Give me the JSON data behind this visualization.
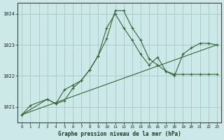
{
  "title": "Graphe pression niveau de la mer (hPa)",
  "bg_color": "#cce8e8",
  "grid_color": "#aacccc",
  "line_color": "#336633",
  "xlim": [
    -0.5,
    23.5
  ],
  "ylim": [
    1020.5,
    1024.35
  ],
  "yticks": [
    1021,
    1022,
    1023,
    1024
  ],
  "xticks": [
    0,
    1,
    2,
    3,
    4,
    5,
    6,
    7,
    8,
    9,
    10,
    11,
    12,
    13,
    14,
    15,
    16,
    17,
    18,
    19,
    20,
    21,
    22,
    23
  ],
  "line1_x": [
    0,
    1,
    3,
    4,
    5,
    6,
    7,
    8,
    9,
    10,
    11,
    12,
    13,
    14,
    15,
    16,
    17,
    18,
    19,
    20,
    21,
    22,
    23
  ],
  "line1_y": [
    1020.75,
    1021.05,
    1021.25,
    1021.1,
    1021.55,
    1021.7,
    1021.85,
    1022.2,
    1022.65,
    1023.2,
    1024.1,
    1024.1,
    1023.55,
    1023.15,
    1022.55,
    1022.35,
    1022.15,
    1022.05,
    1022.05,
    1022.05,
    1022.05,
    1022.05,
    1022.05
  ],
  "line2_x": [
    0,
    3,
    4,
    5,
    6,
    7,
    8,
    9,
    10,
    11,
    12,
    13,
    14,
    15,
    16,
    17,
    18,
    19,
    20,
    21,
    22,
    23
  ],
  "line2_y": [
    1020.75,
    1021.25,
    1021.1,
    1021.2,
    1021.6,
    1021.85,
    1022.2,
    1022.65,
    1023.55,
    1024.0,
    1023.55,
    1023.15,
    1022.7,
    1022.35,
    1022.6,
    1022.15,
    1022.0,
    1022.7,
    1022.9,
    1023.05,
    1023.05,
    1023.0
  ],
  "line3_x": [
    0,
    23
  ],
  "line3_y": [
    1020.75,
    1023.0
  ]
}
